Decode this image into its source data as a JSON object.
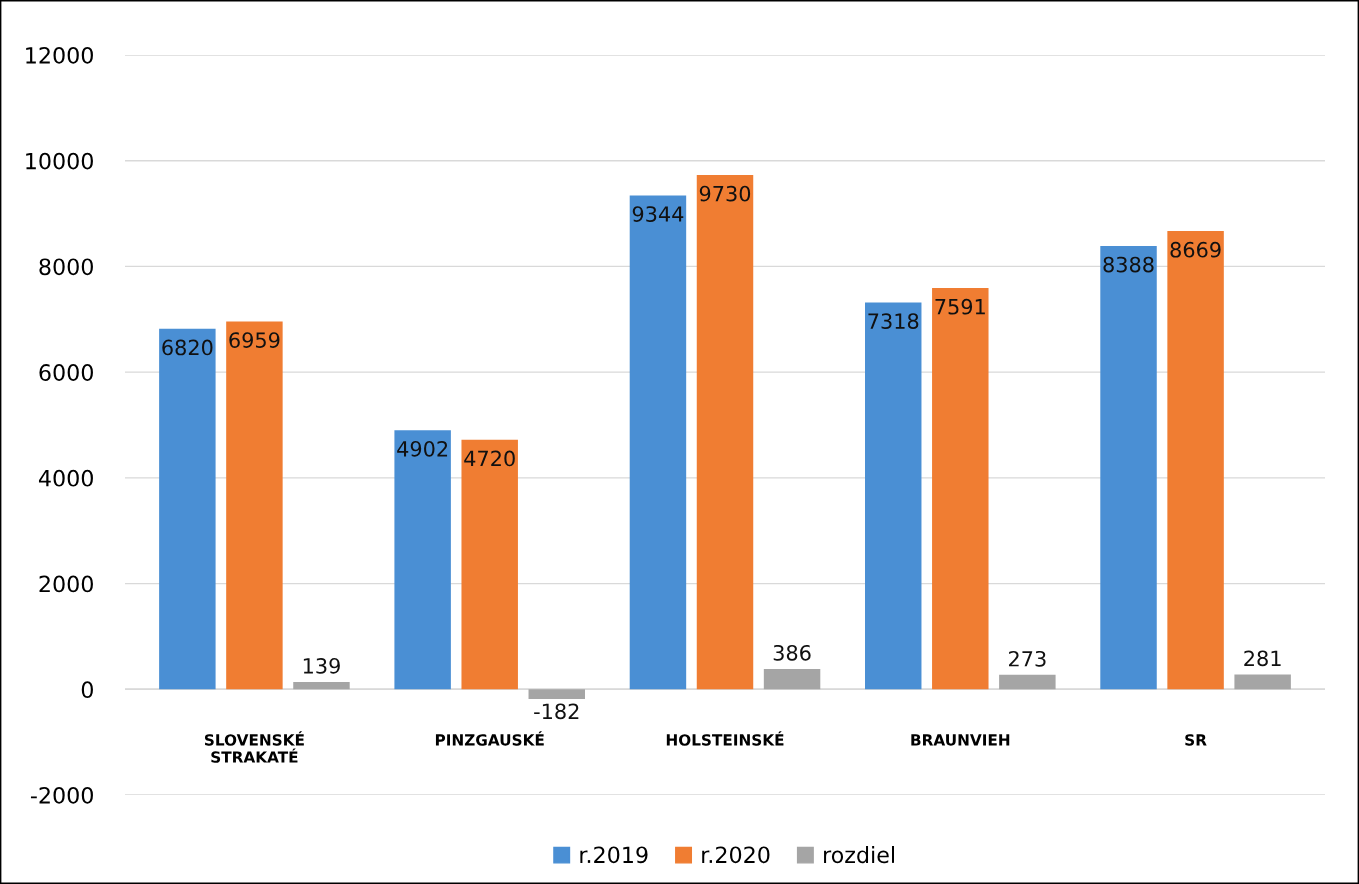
{
  "chart_data": {
    "type": "bar",
    "categories": [
      "SLOVENSKÉ\nSTRAKATÉ",
      "PINZGAUSKÉ",
      "HOLSTEINSKÉ",
      "BRAUNVIEH",
      "SR"
    ],
    "series": [
      {
        "name": "r.2019",
        "color": "#4a8fd4",
        "values": [
          6820,
          4902,
          9344,
          7318,
          8388
        ]
      },
      {
        "name": "r.2020",
        "color": "#f07d32",
        "values": [
          6959,
          4720,
          9730,
          7591,
          8669
        ]
      },
      {
        "name": "rozdiel",
        "color": "#a5a5a5",
        "values": [
          139,
          -182,
          386,
          273,
          281
        ]
      }
    ],
    "ylim": [
      -2000,
      12000
    ],
    "yticks": [
      {
        "value": -2000,
        "label": "-2000"
      },
      0,
      2000,
      4000,
      6000,
      8000,
      10000,
      12000
    ],
    "grid": "y",
    "legend": "bottom",
    "data_labels": true
  }
}
